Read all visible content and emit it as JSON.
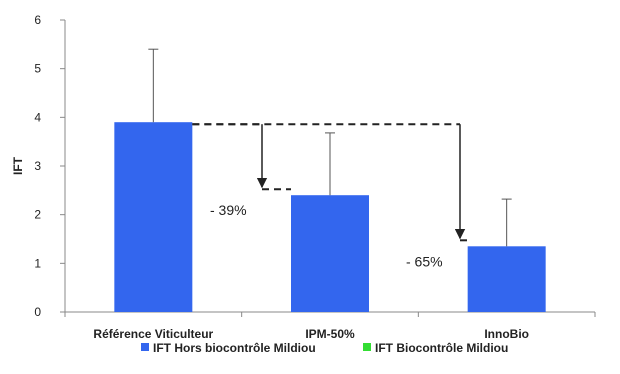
{
  "chart_data": {
    "type": "bar",
    "categories": [
      "Référence Viticulteur",
      "IPM-50%",
      "InnoBio"
    ],
    "series": [
      {
        "name": "IFT Hors biocontrôle Mildiou",
        "color": "#3366ee",
        "values": [
          3.9,
          2.4,
          1.35
        ],
        "error_upper": [
          5.4,
          3.68,
          2.32
        ]
      },
      {
        "name": "IFT Biocontrôle Mildiou",
        "color": "#33dd33",
        "values": [
          0,
          0,
          0
        ]
      }
    ],
    "ylabel": "IFT",
    "xlabel": "",
    "ylim": [
      0,
      6
    ],
    "yticks": [
      "0",
      "1",
      "2",
      "3",
      "4",
      "5",
      "6"
    ],
    "grid": false,
    "legend_position": "bottom",
    "annotations": [
      {
        "text": "- 39%",
        "from_category": 0,
        "to_category": 1
      },
      {
        "text": "- 65%",
        "from_category": 0,
        "to_category": 2
      }
    ]
  }
}
